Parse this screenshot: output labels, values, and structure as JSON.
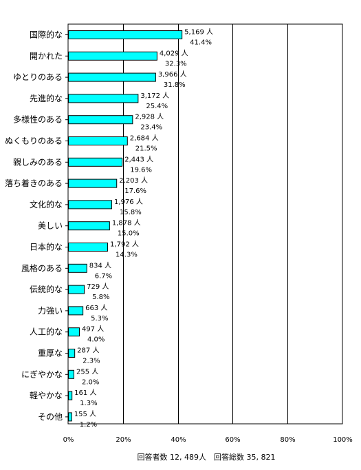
{
  "chart_data": {
    "type": "bar",
    "orientation": "horizontal",
    "categories": [
      "国際的な",
      "開かれた",
      "ゆとりのある",
      "先進的な",
      "多様性のある",
      "ぬくもりのある",
      "親しみのある",
      "落ち着きのある",
      "文化的な",
      "美しい",
      "日本的な",
      "風格のある",
      "伝統的な",
      "力強い",
      "人工的な",
      "重厚な",
      "にぎやかな",
      "軽やかな",
      "その他"
    ],
    "counts": [
      5169,
      4029,
      3966,
      3172,
      2928,
      2684,
      2443,
      2203,
      1976,
      1878,
      1792,
      834,
      729,
      663,
      497,
      287,
      255,
      161,
      155
    ],
    "count_labels": [
      "5,169 人",
      "4,029 人",
      "3,966 人",
      "3,172 人",
      "2,928 人",
      "2,684 人",
      "2,443 人",
      "2,203 人",
      "1,976 人",
      "1,878 人",
      "1,792 人",
      "834 人",
      "729 人",
      "663 人",
      "497 人",
      "287 人",
      "255 人",
      "161 人",
      "155 人"
    ],
    "values": [
      41.4,
      32.3,
      31.8,
      25.4,
      23.4,
      21.5,
      19.6,
      17.6,
      15.8,
      15.0,
      14.3,
      6.7,
      5.8,
      5.3,
      4.0,
      2.3,
      2.0,
      1.3,
      1.2
    ],
    "percent_labels": [
      "41.4%",
      "32.3%",
      "31.8%",
      "25.4%",
      "23.4%",
      "21.5%",
      "19.6%",
      "17.6%",
      "15.8%",
      "15.0%",
      "14.3%",
      "6.7%",
      "5.8%",
      "5.3%",
      "4.0%",
      "2.3%",
      "2.0%",
      "1.3%",
      "1.2%"
    ],
    "xlim": [
      0,
      100
    ],
    "xticks": [
      0,
      20,
      40,
      60,
      80,
      100
    ],
    "xtick_labels": [
      "0%",
      "20%",
      "40%",
      "60%",
      "80%",
      "100%"
    ],
    "grid": true,
    "bar_color": "#00ffff",
    "footer": "回答者数 12, 489人　回答総数 35, 821"
  }
}
